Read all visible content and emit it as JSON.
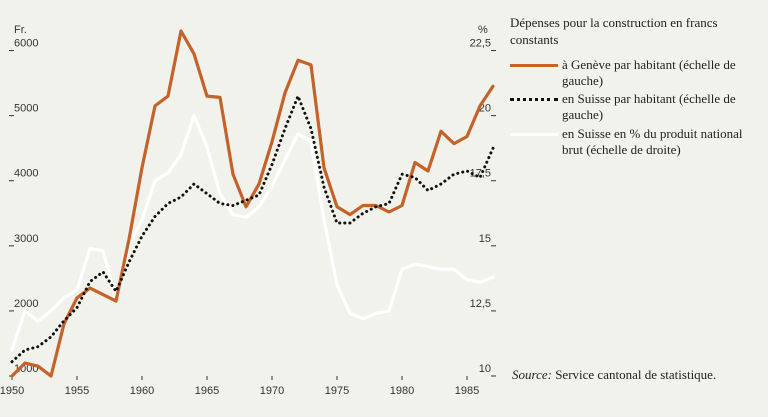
{
  "legend": {
    "title": "Dépenses pour la construction en francs constants",
    "items": [
      {
        "label": "à Genève par habitant (échelle de gauche)",
        "color": "#c4622a",
        "style": "solid"
      },
      {
        "label": "en Suisse par habitant (échelle de gauche)",
        "color": "#111111",
        "style": "dotted"
      },
      {
        "label": "en Suisse en % du produit national brut (échelle de droite)",
        "color": "#ffffff",
        "style": "solid"
      }
    ]
  },
  "source": {
    "label": "Source:",
    "text": "Service cantonal de statistique."
  },
  "chart_data": {
    "type": "line",
    "ylabel_left": "Fr.",
    "ylabel_right": "%",
    "x_ticks": [
      "1950",
      "1955",
      "1960",
      "1965",
      "1970",
      "1975",
      "1980",
      "1985"
    ],
    "y_left_ticks": [
      "1000",
      "2000",
      "3000",
      "4000",
      "5000",
      "6000"
    ],
    "y_right_ticks": [
      "10",
      "12,5",
      "15",
      "17,5",
      "20",
      "22,5"
    ],
    "xlim": [
      1950,
      1987
    ],
    "ylim_left": [
      1000,
      6500
    ],
    "ylim_right": [
      10,
      23.75
    ],
    "series": [
      {
        "axis": "left",
        "color": "#c4622a",
        "x": [
          1950,
          1951,
          1952,
          1953,
          1954,
          1955,
          1956,
          1957,
          1958,
          1959,
          1960,
          1961,
          1962,
          1963,
          1964,
          1965,
          1966,
          1967,
          1968,
          1969,
          1970,
          1971,
          1972,
          1973,
          1974,
          1975,
          1976,
          1977,
          1978,
          1979,
          1980,
          1981,
          1982,
          1983,
          1984,
          1985,
          1986,
          1987
        ],
        "y": [
          1000,
          1200,
          1150,
          1000,
          1800,
          2200,
          2350,
          2250,
          2150,
          3100,
          4200,
          5150,
          5300,
          6300,
          5950,
          5300,
          5280,
          4100,
          3600,
          3950,
          4600,
          5350,
          5850,
          5780,
          4200,
          3600,
          3480,
          3620,
          3620,
          3520,
          3620,
          4280,
          4150,
          4760,
          4570,
          4680,
          5150,
          5450
        ]
      },
      {
        "axis": "left",
        "color": "#111111",
        "x": [
          1950,
          1951,
          1952,
          1953,
          1954,
          1955,
          1956,
          1957,
          1958,
          1959,
          1960,
          1961,
          1962,
          1963,
          1964,
          1965,
          1966,
          1967,
          1968,
          1969,
          1970,
          1971,
          1972,
          1973,
          1974,
          1975,
          1976,
          1977,
          1978,
          1979,
          1980,
          1981,
          1982,
          1983,
          1984,
          1985,
          1986,
          1987
        ],
        "y": [
          1220,
          1400,
          1450,
          1600,
          1850,
          2050,
          2450,
          2600,
          2300,
          2750,
          3150,
          3450,
          3650,
          3750,
          3950,
          3800,
          3650,
          3620,
          3700,
          3780,
          4250,
          4800,
          5300,
          4800,
          3900,
          3350,
          3350,
          3500,
          3600,
          3650,
          4100,
          4050,
          3850,
          3950,
          4100,
          4150,
          4050,
          4500
        ]
      },
      {
        "axis": "right",
        "color": "#ffffff",
        "x": [
          1950,
          1951,
          1952,
          1953,
          1954,
          1955,
          1956,
          1957,
          1958,
          1959,
          1960,
          1961,
          1962,
          1963,
          1964,
          1965,
          1966,
          1967,
          1968,
          1969,
          1970,
          1971,
          1972,
          1973,
          1974,
          1975,
          1976,
          1977,
          1978,
          1979,
          1980,
          1981,
          1982,
          1983,
          1984,
          1985,
          1986,
          1987
        ],
        "y": [
          11.0,
          12.5,
          12.1,
          12.5,
          13.0,
          13.3,
          14.9,
          14.8,
          13.0,
          15.0,
          16.0,
          17.5,
          17.8,
          18.5,
          20.0,
          18.8,
          17.0,
          16.2,
          16.1,
          16.5,
          17.3,
          18.3,
          19.3,
          19.0,
          16.0,
          13.5,
          12.4,
          12.2,
          12.4,
          12.5,
          14.1,
          14.3,
          14.2,
          14.1,
          14.1,
          13.7,
          13.6,
          13.8
        ]
      }
    ]
  }
}
